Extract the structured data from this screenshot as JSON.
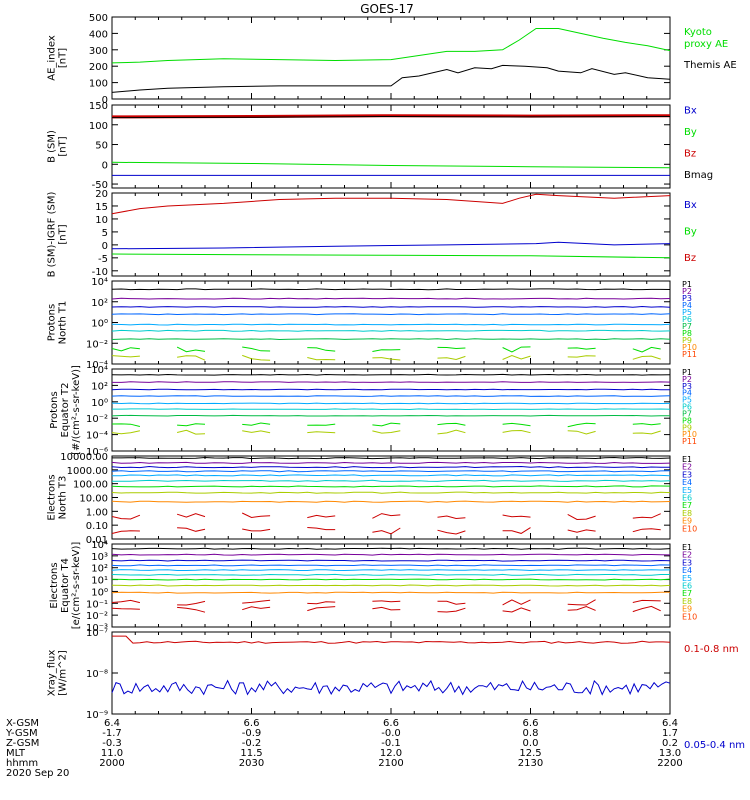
{
  "title": "GOES-17",
  "date": "2020 Sep 20",
  "colors": {
    "black": "#000000",
    "red": "#cc0000",
    "green": "#00dd00",
    "blue": "#0000cc",
    "P": [
      "#000000",
      "#770099",
      "#0000cc",
      "#0066ff",
      "#00aaff",
      "#00cccc",
      "#00bb44",
      "#00dd00",
      "#aacc00",
      "#ff8800",
      "#ff4400",
      "#cc0000"
    ],
    "E": [
      "#000000",
      "#770099",
      "#0000cc",
      "#0066ff",
      "#00aaff",
      "#00cccc",
      "#00dd00",
      "#aacc00",
      "#ff8800",
      "#ff4400",
      "#cc0000"
    ]
  },
  "chart_data": [
    {
      "type": "line",
      "id": "ae",
      "ylabel": [
        "AE_index",
        "[nT]"
      ],
      "ylim": [
        0,
        500
      ],
      "yticks": [
        "0",
        "100",
        "200",
        "300",
        "400",
        "500"
      ],
      "ytick_vals": [
        0,
        100,
        200,
        300,
        400,
        500
      ],
      "series": [
        {
          "name": "Kyoto proxy AE",
          "legend": [
            "Kyoto",
            "proxy AE"
          ],
          "color": "#00dd00",
          "x": [
            0,
            0.05,
            0.1,
            0.2,
            0.3,
            0.4,
            0.5,
            0.55,
            0.6,
            0.65,
            0.7,
            0.73,
            0.76,
            0.8,
            0.84,
            0.88,
            0.92,
            0.96,
            1.0
          ],
          "y": [
            220,
            225,
            235,
            245,
            240,
            235,
            240,
            265,
            290,
            290,
            300,
            360,
            430,
            430,
            400,
            370,
            345,
            325,
            295
          ]
        },
        {
          "name": "Themis AE",
          "legend": [
            "Themis AE"
          ],
          "color": "#000000",
          "x": [
            0,
            0.05,
            0.1,
            0.15,
            0.2,
            0.3,
            0.4,
            0.5,
            0.52,
            0.55,
            0.6,
            0.62,
            0.65,
            0.68,
            0.7,
            0.74,
            0.78,
            0.8,
            0.84,
            0.86,
            0.9,
            0.92,
            0.96,
            1.0
          ],
          "y": [
            40,
            55,
            65,
            70,
            75,
            80,
            80,
            80,
            130,
            140,
            180,
            160,
            190,
            185,
            205,
            200,
            190,
            170,
            160,
            185,
            150,
            160,
            130,
            120
          ]
        }
      ]
    },
    {
      "type": "line",
      "id": "b",
      "ylabel": [
        "B (SM)",
        "[nT]"
      ],
      "ylim": [
        -60,
        150
      ],
      "yticks": [
        "-50",
        "0",
        "50",
        "100",
        "150"
      ],
      "ytick_vals": [
        -50,
        0,
        50,
        100,
        150
      ],
      "series": [
        {
          "name": "Bx",
          "legend": [
            "Bx"
          ],
          "color": "#0000cc",
          "x": [
            0,
            1
          ],
          "y": [
            -28,
            -28
          ]
        },
        {
          "name": "By",
          "legend": [
            "By"
          ],
          "color": "#00dd00",
          "x": [
            0,
            0.25,
            0.5,
            0.75,
            1
          ],
          "y": [
            5,
            2,
            -3,
            -6,
            -9
          ]
        },
        {
          "name": "Bz",
          "legend": [
            "Bz"
          ],
          "color": "#cc0000",
          "x": [
            0,
            0.25,
            0.5,
            0.75,
            1
          ],
          "y": [
            120,
            121,
            123,
            122,
            123
          ]
        },
        {
          "name": "Bmag",
          "legend": [
            "Bmag"
          ],
          "color": "#000000",
          "x": [
            0,
            0.25,
            0.5,
            0.75,
            1
          ],
          "y": [
            118,
            119,
            121,
            120,
            121
          ]
        }
      ]
    },
    {
      "type": "line",
      "id": "bdiff",
      "ylabel": [
        "B (SM)-IGRF (SM)",
        "[nT]"
      ],
      "ylim": [
        -12,
        20
      ],
      "yticks": [
        "-10",
        "-5",
        "0",
        "5",
        "10",
        "15",
        "20"
      ],
      "ytick_vals": [
        -10,
        -5,
        0,
        5,
        10,
        15,
        20
      ],
      "series": [
        {
          "name": "Bx",
          "legend": [
            "Bx"
          ],
          "color": "#0000cc",
          "x": [
            0,
            0.2,
            0.4,
            0.6,
            0.76,
            0.8,
            0.9,
            1.0
          ],
          "y": [
            -1.5,
            -1.2,
            -0.5,
            0,
            0.5,
            1,
            0,
            0.5
          ]
        },
        {
          "name": "By",
          "legend": [
            "By"
          ],
          "color": "#00dd00",
          "x": [
            0,
            0.25,
            0.5,
            0.75,
            1
          ],
          "y": [
            -3.5,
            -3.8,
            -4,
            -4.2,
            -5
          ]
        },
        {
          "name": "Bz",
          "legend": [
            "Bz"
          ],
          "color": "#cc0000",
          "x": [
            0,
            0.05,
            0.1,
            0.2,
            0.3,
            0.4,
            0.5,
            0.6,
            0.7,
            0.73,
            0.76,
            0.8,
            0.9,
            1.0
          ],
          "y": [
            12,
            14,
            15,
            16,
            17.5,
            18,
            18,
            17.5,
            16,
            18,
            19.5,
            19,
            18,
            19
          ]
        }
      ]
    },
    {
      "type": "line",
      "id": "p1",
      "log": true,
      "ylabel": [
        "Protons",
        "North T1"
      ],
      "ylim": [
        -4,
        4
      ],
      "yticks": [
        "10⁻⁴",
        "10⁻²",
        "10⁰",
        "10²",
        "10⁴"
      ],
      "ytick_vals": [
        -4,
        -2,
        0,
        2,
        4
      ],
      "levels": [
        3.2,
        2.3,
        1.5,
        0.8,
        -0.2,
        -0.8,
        -1.6,
        -2.6,
        -3.4
      ],
      "level_colors": [
        "#000000",
        "#770099",
        "#0000cc",
        "#0066ff",
        "#00aaff",
        "#00cccc",
        "#00bb44",
        "#00dd00",
        "#aacc00"
      ],
      "legend": [
        "P1",
        "P2",
        "P3",
        "P4",
        "P5",
        "P6",
        "P7",
        "P8",
        "P9",
        "P10",
        "P11"
      ]
    },
    {
      "type": "line",
      "id": "p2",
      "log": true,
      "ylabel": [
        "Protons",
        "Equator T2",
        "[#/(cm²-s-sr-keV)]"
      ],
      "ylim": [
        -6,
        4
      ],
      "yticks": [
        "10⁻⁶",
        "10⁻⁴",
        "10⁻²",
        "10⁰",
        "10²",
        "10⁴"
      ],
      "ytick_vals": [
        -6,
        -4,
        -2,
        0,
        2,
        4
      ],
      "levels": [
        3.3,
        2.4,
        1.5,
        0.7,
        -0.2,
        -0.9,
        -1.7,
        -2.8,
        -3.7
      ],
      "level_colors": [
        "#000000",
        "#770099",
        "#0000cc",
        "#0066ff",
        "#00aaff",
        "#00cccc",
        "#00bb44",
        "#00dd00",
        "#aacc00"
      ],
      "legend": [
        "P1",
        "P2",
        "P3",
        "P4",
        "P5",
        "P6",
        "P7",
        "P8",
        "P9",
        "P10",
        "P11"
      ]
    },
    {
      "type": "line",
      "id": "e1",
      "log": true,
      "ylabel": [
        "Electrons",
        "North T3"
      ],
      "ylim": [
        -2,
        4
      ],
      "yticks": [
        "0.01",
        "0.10",
        "1.00",
        "10.00",
        "100.00",
        "1000.00",
        "10000.00"
      ],
      "ytick_vals": [
        -2,
        -1,
        0,
        1,
        2,
        3,
        4
      ],
      "levels": [
        3.85,
        3.5,
        3.2,
        2.9,
        2.6,
        2.2,
        1.8,
        1.35,
        0.7,
        -0.35,
        -1.4
      ],
      "level_colors": [
        "#000000",
        "#770099",
        "#0000cc",
        "#0066ff",
        "#00aaff",
        "#00cccc",
        "#00dd00",
        "#aacc00",
        "#ff8800",
        "#cc0000",
        "#cc0000"
      ],
      "legend": [
        "E1",
        "E2",
        "E3",
        "E4",
        "E5",
        "E6",
        "E7",
        "E8",
        "E9",
        "E10"
      ]
    },
    {
      "type": "line",
      "id": "e2",
      "log": true,
      "ylabel": [
        "Electrons",
        "Equator T4",
        "[e/(cm²-s-sr-keV)]"
      ],
      "ylim": [
        -3,
        4
      ],
      "yticks": [
        "10⁻³",
        "10⁻²",
        "10⁻¹",
        "10⁰",
        "10¹",
        "10²",
        "10³",
        "10⁴"
      ],
      "ytick_vals": [
        -3,
        -2,
        -1,
        0,
        1,
        2,
        3,
        4
      ],
      "levels": [
        3.6,
        3.1,
        2.6,
        2.2,
        1.8,
        1.4,
        1.0,
        0.5,
        -0.1,
        -0.9,
        -1.5
      ],
      "level_colors": [
        "#000000",
        "#770099",
        "#0000cc",
        "#0066ff",
        "#00aaff",
        "#00cccc",
        "#00dd00",
        "#aacc00",
        "#ff8800",
        "#cc0000",
        "#cc0000"
      ],
      "legend": [
        "E1",
        "E2",
        "E3",
        "E4",
        "E5",
        "E6",
        "E7",
        "E8",
        "E9",
        "E10"
      ]
    },
    {
      "type": "line",
      "id": "xray",
      "log": true,
      "ylabel": [
        "Xray_flux",
        "[W/m^2]"
      ],
      "ylim": [
        -9,
        -7
      ],
      "yticks": [
        "10⁻⁹",
        "10⁻⁸",
        "10⁻⁷"
      ],
      "ytick_vals": [
        -9,
        -8,
        -7
      ],
      "series": [
        {
          "name": "0.1-0.8 nm",
          "legend": [
            "0.1-0.8 nm"
          ],
          "color": "#cc0000",
          "level": -7.25
        },
        {
          "name": "0.05-0.4 nm",
          "legend": [
            "0.05-0.4 nm"
          ],
          "color": "#0000cc",
          "level": -8.35
        }
      ]
    }
  ],
  "xaxis": {
    "labels": [
      "X-GSM",
      "Y-GSM",
      "Z-GSM",
      "MLT",
      "hhmm"
    ],
    "columns": [
      [
        "6.4",
        "-1.7",
        "-0.3",
        "11.0",
        "2000"
      ],
      [
        "6.6",
        "-0.9",
        "-0.2",
        "11.5",
        "2030"
      ],
      [
        "6.6",
        "-0.0",
        "-0.1",
        "12.0",
        "2100"
      ],
      [
        "6.6",
        "0.8",
        "0.0",
        "12.5",
        "2130"
      ],
      [
        "6.4",
        "1.7",
        "0.2",
        "13.0",
        "2200"
      ]
    ]
  }
}
